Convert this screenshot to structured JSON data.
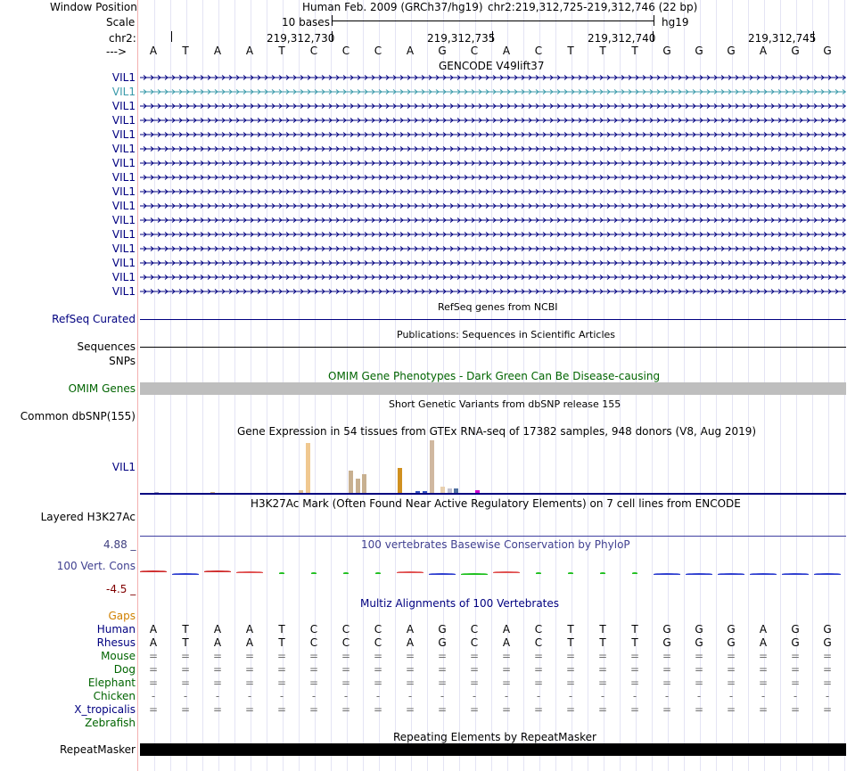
{
  "header": {
    "window_position_label": "Window Position",
    "assembly_text": "Human Feb. 2009 (GRCh37/hg19)",
    "position_text": "chr2:219,312,725-219,312,746 (22 bp)",
    "scale_label": "Scale",
    "scale_text": "10 bases",
    "db_text": "hg19",
    "chrom_label": "chr2:",
    "ticks": [
      "219,312,730",
      "219,312,735",
      "219,312,740",
      "219,312,745"
    ],
    "strand_label": "--->"
  },
  "sequence": [
    "A",
    "T",
    "A",
    "A",
    "T",
    "C",
    "C",
    "C",
    "A",
    "G",
    "C",
    "A",
    "C",
    "T",
    "T",
    "T",
    "G",
    "G",
    "G",
    "A",
    "G",
    "G"
  ],
  "gencode": {
    "title": "GENCODE V49lift37",
    "genes": [
      "VIL1",
      "VIL1",
      "VIL1",
      "VIL1",
      "VIL1",
      "VIL1",
      "VIL1",
      "VIL1",
      "VIL1",
      "VIL1",
      "VIL1",
      "VIL1",
      "VIL1",
      "VIL1",
      "VIL1",
      "VIL1"
    ],
    "highlight_index": 1
  },
  "refseq": {
    "label": "RefSeq Curated",
    "title": "RefSeq genes from NCBI"
  },
  "sequences": {
    "label": "Sequences",
    "title": "Publications: Sequences in Scientific Articles"
  },
  "snps": {
    "label": "SNPs"
  },
  "omim": {
    "label": "OMIM Genes",
    "title": "OMIM Gene Phenotypes - Dark Green Can Be Disease-causing"
  },
  "dbsnp": {
    "label": "Common dbSNP(155)",
    "title": "Short Genetic Variants from dbSNP release 155"
  },
  "gtex": {
    "title": "Gene Expression in 54 tissues from GTEx RNA-seq of 17382 samples, 948 donors (V8, Aug 2019)",
    "label": "VIL1",
    "bars": [
      {
        "x": 0.02,
        "v": 0.02,
        "c": "#a0a0c0"
      },
      {
        "x": 0.1,
        "v": 0.02,
        "c": "#d0b080"
      },
      {
        "x": 0.225,
        "v": 0.06,
        "c": "#e0c090"
      },
      {
        "x": 0.235,
        "v": 1.0,
        "c": "#f0c890"
      },
      {
        "x": 0.295,
        "v": 0.44,
        "c": "#c8b090"
      },
      {
        "x": 0.305,
        "v": 0.28,
        "c": "#c8b090"
      },
      {
        "x": 0.315,
        "v": 0.38,
        "c": "#c8b090"
      },
      {
        "x": 0.365,
        "v": 0.5,
        "c": "#d09020"
      },
      {
        "x": 0.39,
        "v": 0.04,
        "c": "#3050c0"
      },
      {
        "x": 0.4,
        "v": 0.03,
        "c": "#3050c0"
      },
      {
        "x": 0.41,
        "v": 1.05,
        "c": "#d0b8a0"
      },
      {
        "x": 0.425,
        "v": 0.12,
        "c": "#e8d0b0"
      },
      {
        "x": 0.435,
        "v": 0.09,
        "c": "#c0c0d0"
      },
      {
        "x": 0.445,
        "v": 0.09,
        "c": "#5070a0"
      },
      {
        "x": 0.475,
        "v": 0.06,
        "c": "#d000d0"
      }
    ]
  },
  "h3k27ac": {
    "label": "Layered H3K27Ac",
    "title": "H3K27Ac Mark (Often Found Near Active Regulatory Elements) on 7 cell lines from ENCODE"
  },
  "phylop": {
    "max_label": "4.88 _",
    "label": "100 Vert. Cons",
    "min_label": "-4.5 _",
    "title": "100 vertebrates Basewise Conservation by PhyloP",
    "scores": [
      0.35,
      -0.15,
      0.3,
      0.15,
      0.05,
      0.05,
      0.05,
      0.05,
      0.15,
      -0.15,
      -0.1,
      0.15,
      0.05,
      0.05,
      0.05,
      0.05,
      -0.2,
      -0.2,
      -0.2,
      -0.2,
      -0.2,
      -0.2
    ]
  },
  "multiz": {
    "title": "Multiz Alignments of 100 Vertebrates",
    "gaps_label": "Gaps",
    "species": [
      {
        "name": "Human",
        "row": [
          "A",
          "T",
          "A",
          "A",
          "T",
          "C",
          "C",
          "C",
          "A",
          "G",
          "C",
          "A",
          "C",
          "T",
          "T",
          "T",
          "G",
          "G",
          "G",
          "A",
          "G",
          "G"
        ]
      },
      {
        "name": "Rhesus",
        "row": [
          "A",
          "T",
          "A",
          "A",
          "T",
          "C",
          "C",
          "C",
          "A",
          "G",
          "C",
          "A",
          "C",
          "T",
          "T",
          "T",
          "G",
          "G",
          "G",
          "A",
          "G",
          "G"
        ]
      },
      {
        "name": "Mouse",
        "row": [
          "=",
          "=",
          "=",
          "=",
          "=",
          "=",
          "=",
          "=",
          "=",
          "=",
          "=",
          "=",
          "=",
          "=",
          "=",
          "=",
          "=",
          "=",
          "=",
          "=",
          "=",
          "="
        ]
      },
      {
        "name": "Dog",
        "row": [
          "=",
          "=",
          "=",
          "=",
          "=",
          "=",
          "=",
          "=",
          "=",
          "=",
          "=",
          "=",
          "=",
          "=",
          "=",
          "=",
          "=",
          "=",
          "=",
          "=",
          "=",
          "="
        ]
      },
      {
        "name": "Elephant",
        "row": [
          "=",
          "=",
          "=",
          "=",
          "=",
          "=",
          "=",
          "=",
          "=",
          "=",
          "=",
          "=",
          "=",
          "=",
          "=",
          "=",
          "=",
          "=",
          "=",
          "=",
          "=",
          "="
        ]
      },
      {
        "name": "Chicken",
        "row": [
          "-",
          "-",
          "-",
          "-",
          "-",
          "-",
          "-",
          "-",
          "-",
          "-",
          "-",
          "-",
          "-",
          "-",
          "-",
          "-",
          "-",
          "-",
          "-",
          "-",
          "-",
          "-"
        ]
      },
      {
        "name": "X_tropicalis",
        "row": [
          "=",
          "=",
          "=",
          "=",
          "=",
          "=",
          "=",
          "=",
          "=",
          "=",
          "=",
          "=",
          "=",
          "=",
          "=",
          "=",
          "=",
          "=",
          "=",
          "=",
          "=",
          "="
        ]
      },
      {
        "name": "Zebrafish",
        "row": []
      }
    ]
  },
  "repeatmasker": {
    "label": "RepeatMasker",
    "title": "Repeating Elements by RepeatMasker"
  },
  "colors": {
    "navy": "#000080",
    "darkgreen": "#006400",
    "gene_highlight": "#3a9aaa",
    "omim_bar": "#bebebe",
    "phylop_pos": "#d03030",
    "phylop_neg": "#3040d0",
    "phylop_small": "#20c020"
  }
}
